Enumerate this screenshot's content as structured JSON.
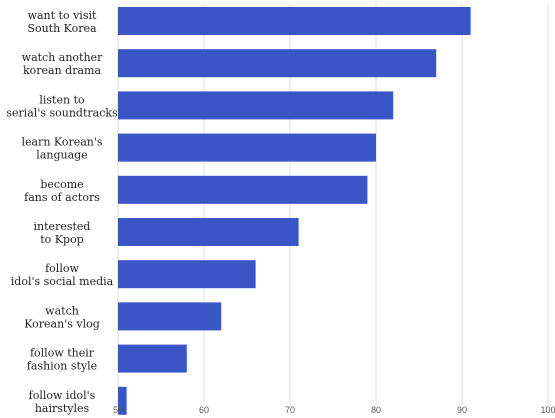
{
  "chart_data": {
    "type": "bar",
    "orientation": "horizontal",
    "categories": [
      [
        "want to visit",
        "South Korea"
      ],
      [
        "watch another",
        "korean drama"
      ],
      [
        "listen to",
        "serial's soundtracks"
      ],
      [
        "learn Korean's",
        "language"
      ],
      [
        "become",
        "fans of actors"
      ],
      [
        "interested",
        "to Kpop"
      ],
      [
        "follow",
        "idol's social media"
      ],
      [
        "watch",
        "Korean's vlog"
      ],
      [
        "follow their",
        "fashion style"
      ],
      [
        "follow idol's",
        "hairstyles"
      ]
    ],
    "values": [
      91,
      87,
      82,
      80,
      79,
      71,
      66,
      62,
      58,
      51
    ],
    "xlim": [
      50,
      100
    ],
    "xticks": [
      "50",
      "60",
      "70",
      "80",
      "90",
      "100"
    ],
    "grid": true,
    "bar_color": "#3a55c6",
    "grid_color": "#dddddd"
  }
}
